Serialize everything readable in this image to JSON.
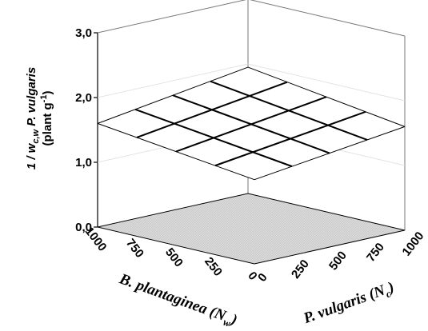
{
  "chart_data": {
    "type": "surface",
    "z_ticks": [
      "0,0",
      "1,0",
      "2,0",
      "3,0"
    ],
    "zlim": [
      0,
      3
    ],
    "x_ticks": [
      "0",
      "250",
      "500",
      "750",
      "1000"
    ],
    "y_ticks": [
      "0",
      "250",
      "500",
      "750",
      "1000"
    ],
    "xlim": [
      0,
      1000
    ],
    "ylim": [
      0,
      1000
    ],
    "zlabel": {
      "line1_a": "1 / w",
      "line1_sub": "c,w",
      "line1_b": "P. vulgaris",
      "line2_a": "(plant g",
      "line2_sup": "-1",
      "line2_b": ")"
    },
    "xlabel": {
      "main": "P. vulgaris (N",
      "sub": "c",
      "end": ")"
    },
    "ylabel": {
      "main": "B. plantaginea (N",
      "sub": "w",
      "end": ")"
    },
    "plane": {
      "description_free": true,
      "corners": [
        {
          "x": 0,
          "y": 0,
          "z": 1.3
        },
        {
          "x": 1000,
          "y": 0,
          "z": 1.6
        },
        {
          "x": 1000,
          "y": 1000,
          "z": 1.95
        },
        {
          "x": 0,
          "y": 1000,
          "z": 1.6
        }
      ],
      "grid_divisions": 4
    }
  }
}
